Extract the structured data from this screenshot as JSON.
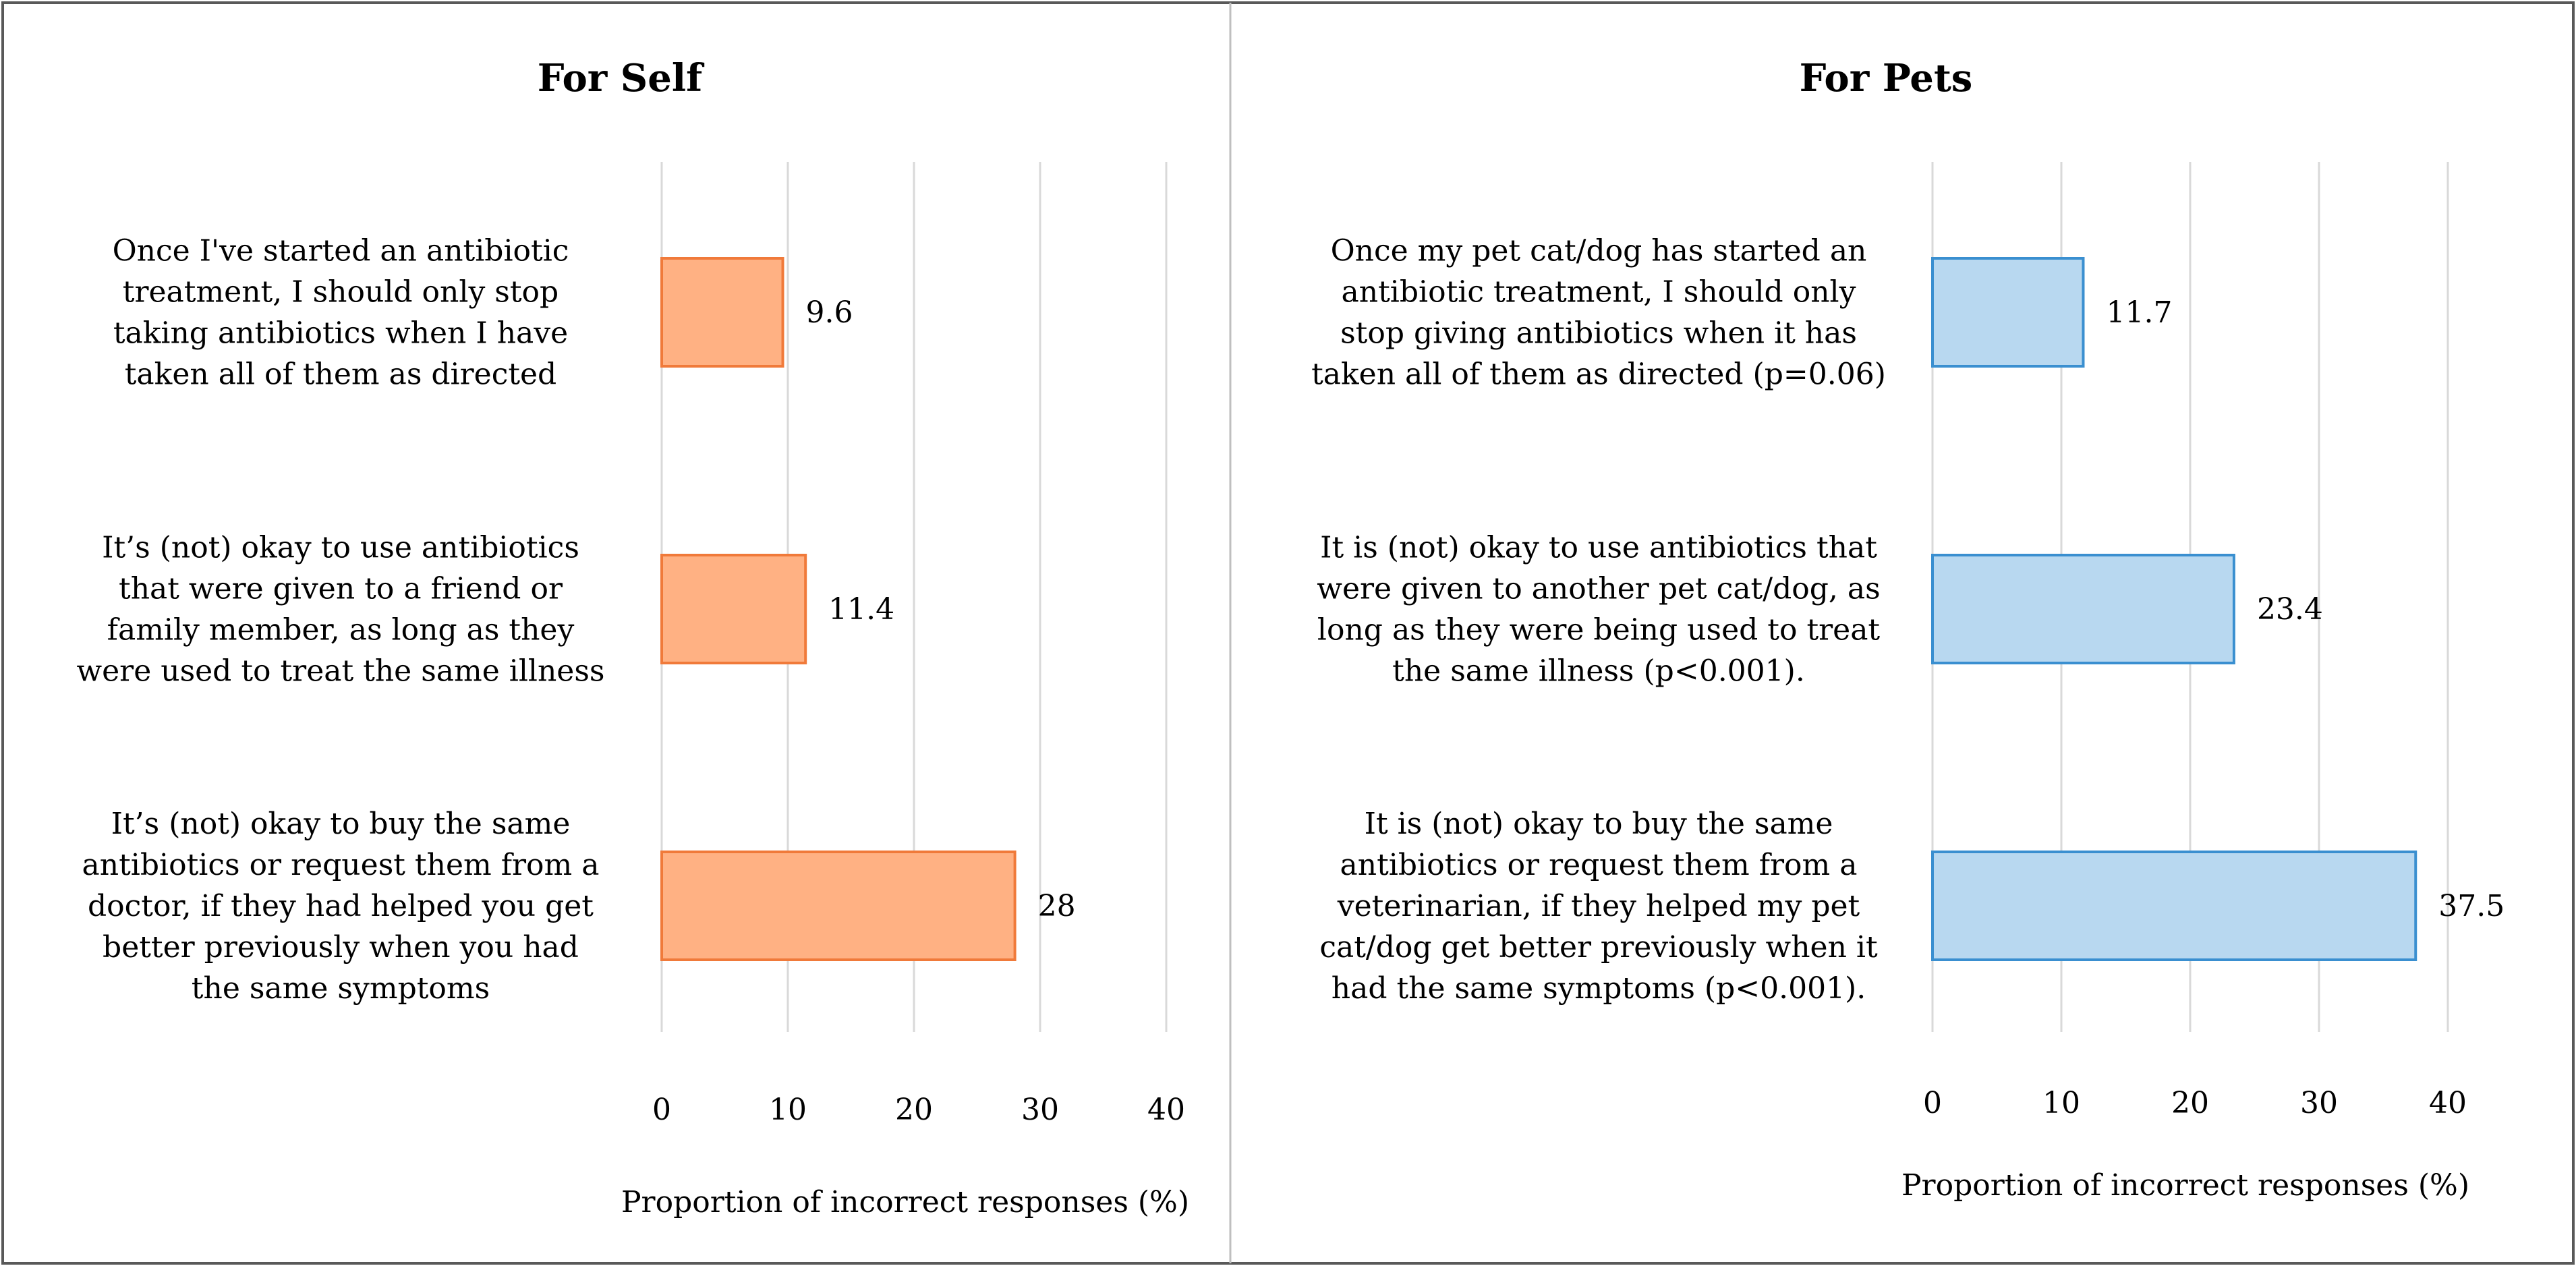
{
  "chart_data": [
    {
      "type": "bar",
      "orientation": "horizontal",
      "title": "For Self",
      "xlabel": "Proportion of incorrect responses (%)",
      "ylabel": "",
      "xlim": [
        0,
        40
      ],
      "xticks": [
        0,
        10,
        20,
        30,
        40
      ],
      "grid": true,
      "color": "#FFB183",
      "edge_color": "#F07A3A",
      "categories": [
        [
          "Once I've started an antibiotic",
          "treatment, I should only stop",
          "taking antibiotics when I have",
          "taken all of them as directed"
        ],
        [
          "It’s (not) okay to use antibiotics",
          "that were given to a friend or",
          "family member, as long as they",
          "were used to treat the same illness"
        ],
        [
          "It’s (not) okay to buy the same",
          "antibiotics or request them from a",
          "doctor, if they had helped you get",
          "better previously when you had",
          "the same symptoms"
        ]
      ],
      "values": [
        9.6,
        11.4,
        28
      ],
      "value_labels": [
        "9.6",
        "11.4",
        "28"
      ]
    },
    {
      "type": "bar",
      "orientation": "horizontal",
      "title": "For Pets",
      "xlabel": "Proportion of incorrect responses (%)",
      "ylabel": "",
      "xlim": [
        0,
        40
      ],
      "xticks": [
        0,
        10,
        20,
        30,
        40
      ],
      "grid": true,
      "color": "#B8D8F0",
      "edge_color": "#3A8FD0",
      "categories": [
        [
          "Once my pet cat/dog has started an",
          "antibiotic treatment, I should only",
          "stop giving antibiotics when it has",
          "taken all of them as directed (p=0.06)"
        ],
        [
          "It is (not) okay to use antibiotics that",
          "were given to another pet cat/dog, as",
          "long as they were being used to treat",
          "the same illness (p<0.001)."
        ],
        [
          "It is (not) okay to buy the same",
          "antibiotics or request them from a",
          "veterinarian, if they helped my pet",
          "cat/dog get better previously when it",
          "had the same symptoms (p<0.001)."
        ]
      ],
      "values": [
        11.7,
        23.4,
        37.5
      ],
      "value_labels": [
        "11.7",
        "23.4",
        "37.5"
      ]
    }
  ]
}
